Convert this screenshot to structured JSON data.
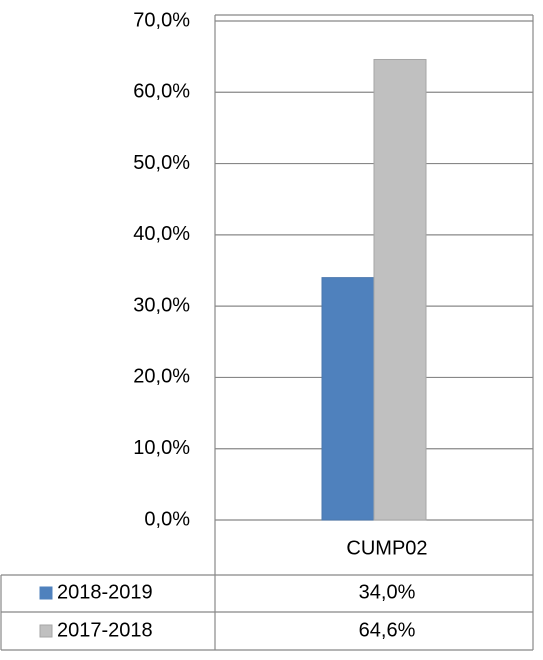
{
  "chart_data": {
    "type": "bar",
    "categories": [
      "CUMP02"
    ],
    "series": [
      {
        "name": "2018-2019",
        "color": "#4f81bd",
        "values": [
          34.0
        ],
        "value_labels": [
          "34,0%"
        ]
      },
      {
        "name": "2017-2018",
        "color": "#c0c0c0",
        "values": [
          64.6
        ],
        "value_labels": [
          "64,6%"
        ]
      }
    ],
    "ylim": [
      0,
      70
    ],
    "yticks": [
      {
        "value": 0,
        "label": "0,0%"
      },
      {
        "value": 10,
        "label": "10,0%"
      },
      {
        "value": 20,
        "label": "20,0%"
      },
      {
        "value": 30,
        "label": "30,0%"
      },
      {
        "value": 40,
        "label": "40,0%"
      },
      {
        "value": 50,
        "label": "50,0%"
      },
      {
        "value": 60,
        "label": "60,0%"
      },
      {
        "value": 70,
        "label": "70,0%"
      }
    ],
    "grid": true
  }
}
